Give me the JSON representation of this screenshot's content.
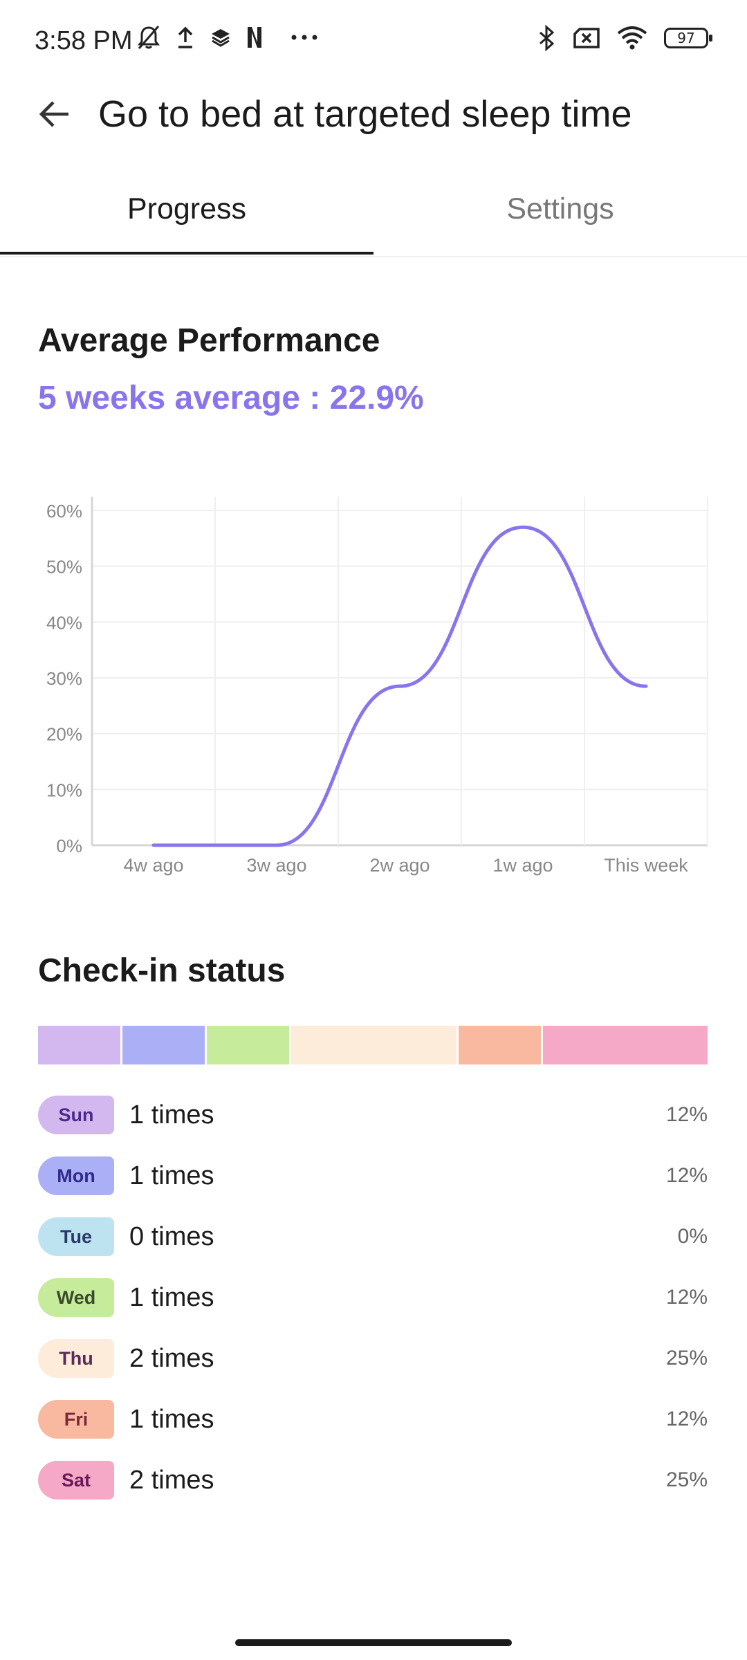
{
  "status_bar": {
    "time": "3:58 PM",
    "left_icons": [
      "bell-off-icon",
      "upload-icon",
      "layers-icon",
      "netflix-icon",
      "more-dots-icon"
    ],
    "right_icons": [
      "bluetooth-icon",
      "no-sim-icon",
      "wifi-icon"
    ],
    "battery": "97"
  },
  "app_bar": {
    "back_icon": "arrow-left-icon",
    "title": "Go to bed at targeted sleep time"
  },
  "tabs": [
    {
      "label": "Progress",
      "selected": true
    },
    {
      "label": "Settings",
      "selected": false
    }
  ],
  "performance": {
    "title": "Average Performance",
    "average_label": "5 weeks average : ",
    "average_value": "22.9%"
  },
  "chart_data": {
    "type": "line",
    "title": "",
    "xlabel": "",
    "ylabel": "",
    "categories": [
      "4w ago",
      "3w ago",
      "2w ago",
      "1w ago",
      "This week"
    ],
    "values": [
      0,
      0,
      28.5,
      57,
      28.5
    ],
    "ylim": [
      0,
      60
    ],
    "y_ticks": [
      "0%",
      "10%",
      "20%",
      "30%",
      "40%",
      "50%",
      "60%"
    ],
    "grid": true,
    "line_color": "#8a74ec",
    "smooth": true
  },
  "checkin": {
    "title": "Check-in status",
    "days": [
      {
        "day": "Sun",
        "times": "1 times",
        "percent": "12%",
        "count": 1,
        "color": "#d3b8f0",
        "text_color": "#4a2a8a"
      },
      {
        "day": "Mon",
        "times": "1 times",
        "percent": "12%",
        "count": 1,
        "color": "#abb0f6",
        "text_color": "#2f2a8a"
      },
      {
        "day": "Tue",
        "times": "0 times",
        "percent": "0%",
        "count": 0,
        "color": "#bde3f0",
        "text_color": "#2a3a6a"
      },
      {
        "day": "Wed",
        "times": "1 times",
        "percent": "12%",
        "count": 1,
        "color": "#c6eb9b",
        "text_color": "#3a4a2a"
      },
      {
        "day": "Thu",
        "times": "2 times",
        "percent": "25%",
        "count": 2,
        "color": "#fcecd9",
        "text_color": "#5a2a5a"
      },
      {
        "day": "Fri",
        "times": "1 times",
        "percent": "12%",
        "count": 1,
        "color": "#f9b9a1",
        "text_color": "#7a2a3a"
      },
      {
        "day": "Sat",
        "times": "2 times",
        "percent": "25%",
        "count": 2,
        "color": "#f6a9c6",
        "text_color": "#6a1a5a"
      }
    ]
  }
}
